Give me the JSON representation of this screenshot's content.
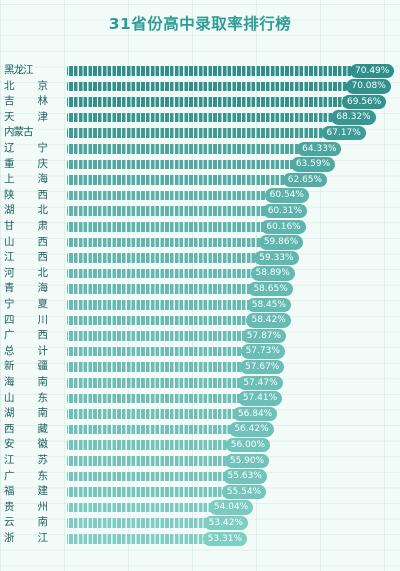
{
  "chart_data": {
    "type": "bar",
    "orientation": "horizontal",
    "title": "31省份高中录取率排行榜",
    "value_suffix": "%",
    "categories": [
      "黑龙江",
      "北 京",
      "吉 林",
      "天 津",
      "内蒙古",
      "辽 宁",
      "重 庆",
      "上 海",
      "陕 西",
      "湖 北",
      "甘 肃",
      "山 西",
      "江 西",
      "河 北",
      "青 海",
      "宁 夏",
      "四 川",
      "广 西",
      "总 计",
      "新 疆",
      "海 南",
      "山 东",
      "湖 南",
      "西 藏",
      "安 徽",
      "江 苏",
      "广 东",
      "福 建",
      "贵 州",
      "云 南",
      "浙 江"
    ],
    "values": [
      70.49,
      70.08,
      69.56,
      68.32,
      67.17,
      64.33,
      63.59,
      62.65,
      60.54,
      60.31,
      60.16,
      59.86,
      59.33,
      58.89,
      58.65,
      58.45,
      58.42,
      57.87,
      57.73,
      57.67,
      57.47,
      57.41,
      56.84,
      56.42,
      56.0,
      55.9,
      55.63,
      55.54,
      54.04,
      53.42,
      53.31
    ],
    "labels": [
      "70.49%",
      "70.08%",
      "69.56%",
      "68.32%",
      "67.17%",
      "64.33%",
      "63.59%",
      "62.65%",
      "60.54%",
      "60.31%",
      "60.16%",
      "59.86%",
      "59.33%",
      "58.89%",
      "58.65%",
      "58.45%",
      "58.42%",
      "57.87%",
      "57.73%",
      "57.67%",
      "57.47%",
      "57.41%",
      "56.84%",
      "56.42%",
      "56.00%",
      "55.90%",
      "55.63%",
      "55.54%",
      "54.04%",
      "53.42%",
      "53.31%"
    ],
    "xlim": [
      0,
      72
    ],
    "grid": true,
    "legend": "none"
  },
  "colors": {
    "bar_dark": "#2f8f8b",
    "bar_light": "#7fcfc4",
    "title": "#2e9c97"
  }
}
